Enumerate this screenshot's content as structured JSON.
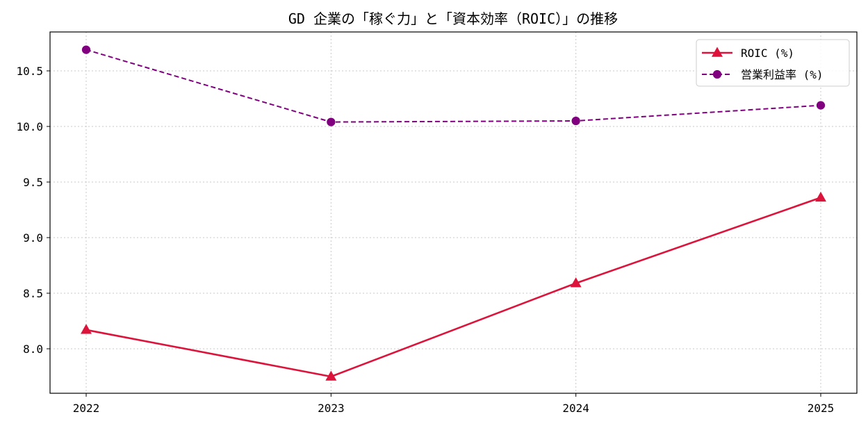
{
  "chart_data": {
    "type": "line",
    "title": "GD 企業の「稼ぐ力」と「資本効率（ROIC）」の推移",
    "xlabel": "",
    "ylabel": "",
    "x": [
      "2022",
      "2023",
      "2024",
      "2025"
    ],
    "ylim": [
      7.6,
      10.85
    ],
    "yticks": [
      "8.0",
      "8.5",
      "9.0",
      "9.5",
      "10.0",
      "10.5"
    ],
    "grid": true,
    "legend_position": "top-right",
    "series": [
      {
        "name": "ROIC (%)",
        "values": [
          8.17,
          7.75,
          8.59,
          9.36
        ],
        "color": "#dc143c",
        "marker": "triangle",
        "line_style": "solid"
      },
      {
        "name": "営業利益率 (%)",
        "values": [
          10.69,
          10.04,
          10.05,
          10.19
        ],
        "color": "#800080",
        "marker": "circle",
        "line_style": "dashed"
      }
    ]
  }
}
